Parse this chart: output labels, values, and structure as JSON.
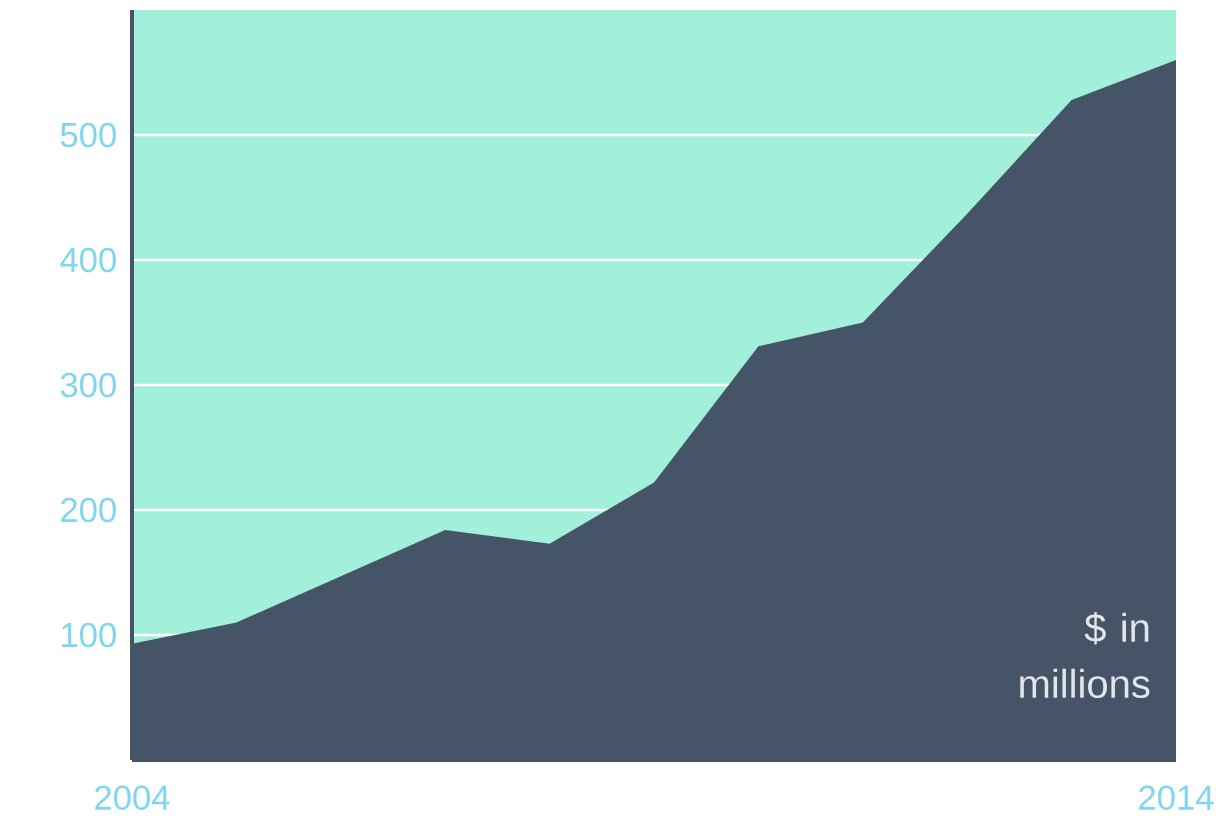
{
  "chart_data": {
    "type": "area",
    "x": [
      2004,
      2005,
      2006,
      2007,
      2008,
      2009,
      2010,
      2011,
      2012,
      2013,
      2014
    ],
    "values": [
      93,
      110,
      147,
      184,
      173,
      222,
      331,
      350,
      437,
      528,
      560
    ],
    "color": "#465468",
    "xlim": [
      2004,
      2014
    ],
    "xticks": [
      2004,
      2014
    ],
    "ylim": [
      0,
      600
    ],
    "yticks": [
      100,
      200,
      300,
      400,
      500
    ],
    "grid": "y",
    "annotations": [
      "$ in millions"
    ]
  }
}
